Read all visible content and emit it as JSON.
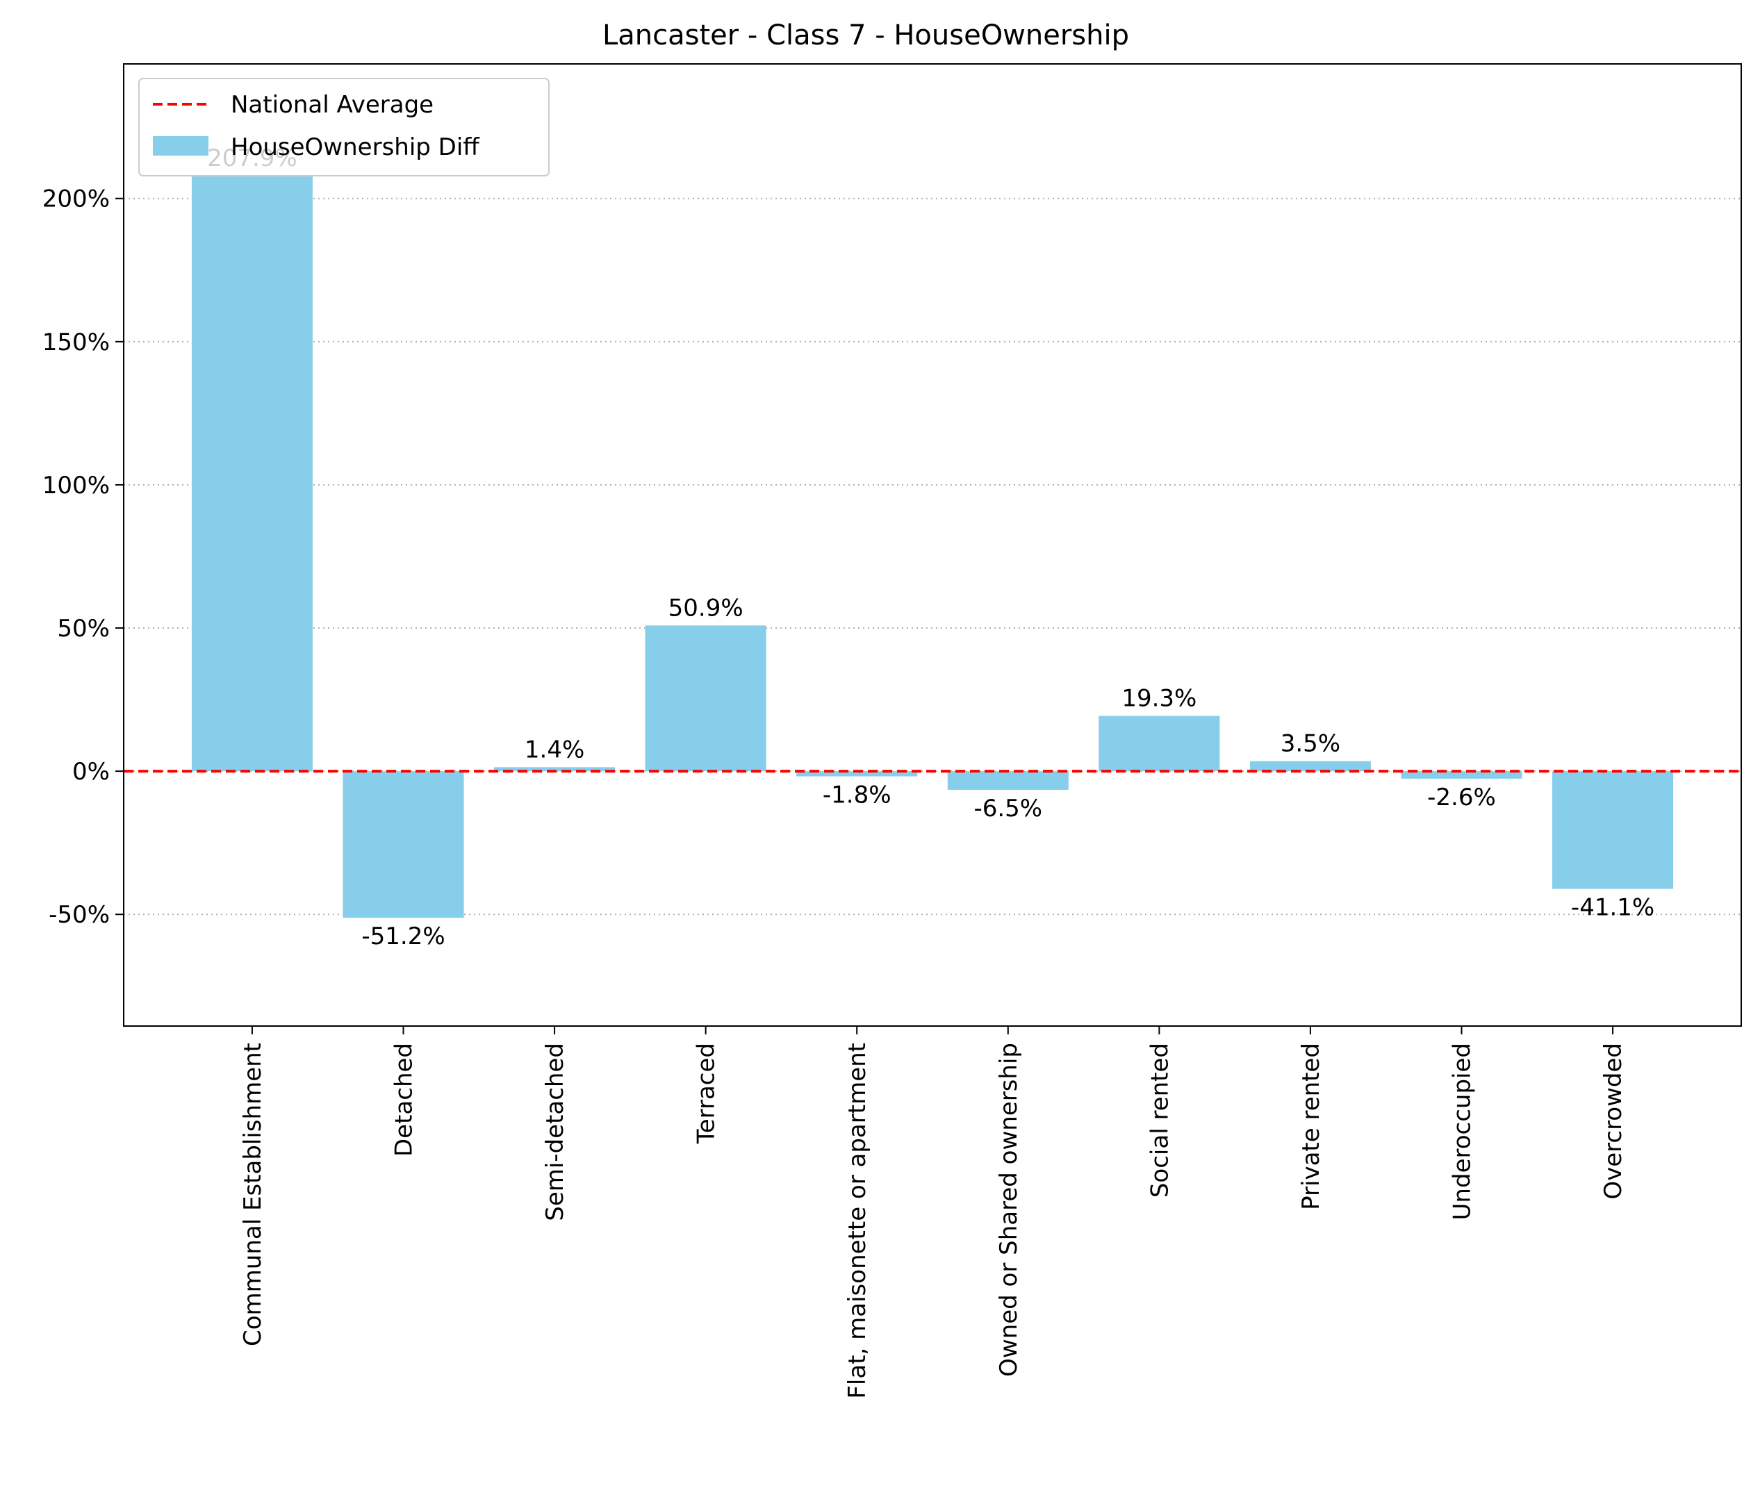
{
  "chart_data": {
    "type": "bar",
    "title": "Lancaster - Class 7 - HouseOwnership",
    "xlabel": "",
    "ylabel": "",
    "categories": [
      "Communal Establishment",
      "Detached",
      "Semi-detached",
      "Terraced",
      "Flat, maisonette or apartment",
      "Owned or Shared ownership",
      "Social rented",
      "Private rented",
      "Underoccupied",
      "Overcrowded"
    ],
    "series": [
      {
        "name": "HouseOwnership Diff",
        "values": [
          207.9,
          -51.2,
          1.4,
          50.9,
          -1.8,
          -6.5,
          19.3,
          3.5,
          -2.6,
          -41.1
        ],
        "labels": [
          "207.9%",
          "-51.2%",
          "1.4%",
          "50.9%",
          "-1.8%",
          "-6.5%",
          "19.3%",
          "3.5%",
          "-2.6%",
          "-41.1%"
        ]
      }
    ],
    "reference_line": {
      "name": "National Average",
      "value": 0,
      "color": "#ff0000",
      "style": "dashed"
    },
    "yticks": [
      -50,
      0,
      50,
      100,
      150,
      200
    ],
    "ytick_labels": [
      "-50%",
      "0%",
      "50%",
      "100%",
      "150%",
      "200%"
    ],
    "ylim": [
      -89,
      247
    ],
    "grid": "horizontal dotted",
    "legend_position": "top-left",
    "colors": {
      "bar": "#87ceeb",
      "reference": "#ff0000",
      "grid": "#b0b0b0"
    }
  }
}
